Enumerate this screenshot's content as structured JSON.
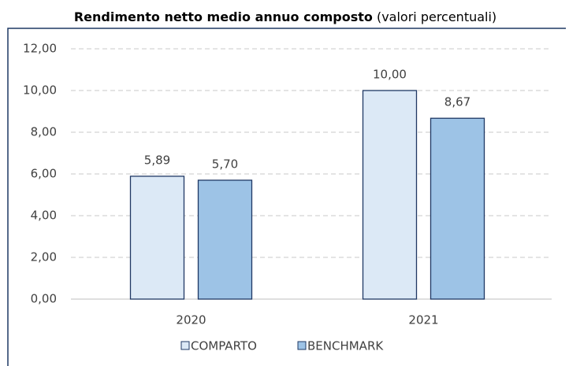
{
  "chart_data": {
    "type": "bar",
    "title": "Rendimento netto medio annuo composto",
    "title_note": "(valori percentuali)",
    "categories": [
      "2020",
      "2021"
    ],
    "series": [
      {
        "name": "COMPARTO",
        "color": "#dce9f6",
        "values": [
          5.89,
          10.0
        ],
        "value_labels": [
          "5,89",
          "10,00"
        ]
      },
      {
        "name": "BENCHMARK",
        "color": "#9dc3e6",
        "values": [
          5.7,
          8.67
        ],
        "value_labels": [
          "5,70",
          "8,67"
        ]
      }
    ],
    "ylim": [
      0,
      12
    ],
    "yticks": [
      {
        "value": 0,
        "label": "0,00"
      },
      {
        "value": 2,
        "label": "2,00"
      },
      {
        "value": 4,
        "label": "4,00"
      },
      {
        "value": 6,
        "label": "6,00"
      },
      {
        "value": 8,
        "label": "8,00"
      },
      {
        "value": 10,
        "label": "10,00"
      },
      {
        "value": 12,
        "label": "12,00"
      }
    ],
    "grid": true,
    "legend": "bottom"
  }
}
